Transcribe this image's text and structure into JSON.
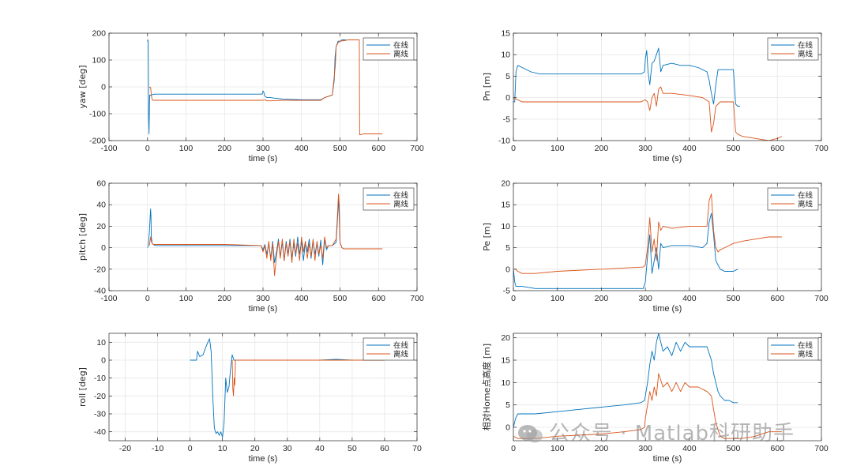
{
  "colors": {
    "online": "#0072BD",
    "offline": "#D95319",
    "grid": "#e6e6e6",
    "axis": "#262626"
  },
  "legend": {
    "online_label": "在线",
    "offline_label": "离线"
  },
  "watermark": {
    "text": "公众号 · Matlab科研助手"
  },
  "chart_data": [
    {
      "id": "yaw",
      "type": "line",
      "position": "top-left",
      "title": "",
      "xlabel": "time (s)",
      "ylabel": "yaw [deg]",
      "xlim": [
        -100,
        700
      ],
      "ylim": [
        -200,
        200
      ],
      "xticks": [
        -100,
        0,
        100,
        200,
        300,
        400,
        500,
        600,
        700
      ],
      "yticks": [
        -200,
        -100,
        0,
        100,
        200
      ],
      "series": [
        {
          "name": "在线",
          "color": "online",
          "x": [
            0,
            1,
            2,
            2.5,
            3,
            4,
            5,
            6,
            8,
            10,
            15,
            20,
            30,
            50,
            100,
            200,
            290,
            298,
            300,
            302,
            305,
            310,
            320,
            330,
            350,
            400,
            450,
            460,
            470,
            480,
            485,
            487,
            490,
            495,
            500,
            505,
            510,
            515
          ],
          "y": [
            170,
            175,
            170,
            0,
            -120,
            -175,
            -60,
            -30,
            -32,
            -30,
            -28,
            -27,
            -27,
            -27,
            -27,
            -27,
            -27,
            -27,
            -15,
            -20,
            -35,
            -40,
            -40,
            -42,
            -45,
            -48,
            -48,
            -40,
            -35,
            -30,
            25,
            110,
            150,
            170,
            170,
            175,
            175,
            175
          ]
        },
        {
          "name": "离线",
          "color": "offline",
          "x": [
            5,
            6,
            8,
            10,
            12,
            15,
            20,
            30,
            50,
            100,
            200,
            290,
            300,
            305,
            310,
            320,
            350,
            400,
            450,
            460,
            470,
            480,
            488,
            490,
            495,
            500,
            510,
            520,
            550,
            551,
            555,
            560,
            600,
            610
          ],
          "y": [
            0,
            -2,
            -2,
            -30,
            -48,
            -50,
            -50,
            -50,
            -50,
            -50,
            -50,
            -50,
            -50,
            -48,
            -52,
            -52,
            -50,
            -50,
            -50,
            -40,
            -35,
            -30,
            80,
            150,
            165,
            170,
            172,
            175,
            175,
            -178,
            -178,
            -175,
            -175,
            -175
          ]
        }
      ]
    },
    {
      "id": "pn",
      "type": "line",
      "position": "top-right",
      "title": "",
      "xlabel": "time (s)",
      "ylabel": "Pn [m]",
      "xlim": [
        0,
        700
      ],
      "ylim": [
        -10,
        15
      ],
      "xticks": [
        0,
        100,
        200,
        300,
        400,
        500,
        600,
        700
      ],
      "yticks": [
        -10,
        -5,
        0,
        5,
        10,
        15
      ],
      "series": [
        {
          "name": "在线",
          "color": "online",
          "x": [
            0,
            3,
            6,
            10,
            20,
            40,
            60,
            100,
            200,
            290,
            298,
            300,
            303,
            306,
            310,
            315,
            320,
            325,
            330,
            335,
            340,
            360,
            380,
            400,
            420,
            440,
            445,
            450,
            455,
            460,
            465,
            470,
            480,
            500,
            505,
            510,
            515
          ],
          "y": [
            -1,
            -1,
            6,
            7.5,
            7,
            6,
            5.5,
            5.5,
            5.5,
            5.5,
            6,
            9,
            11,
            6,
            3,
            8,
            8.5,
            10,
            11.5,
            6,
            7.5,
            8,
            7.5,
            7.5,
            7,
            6,
            4,
            1,
            -1.5,
            3,
            6.5,
            6.5,
            6.5,
            6.5,
            -1.5,
            -2,
            -2
          ]
        },
        {
          "name": "离线",
          "color": "offline",
          "x": [
            0,
            10,
            20,
            50,
            100,
            200,
            290,
            300,
            305,
            310,
            315,
            320,
            325,
            330,
            335,
            340,
            360,
            400,
            430,
            445,
            450,
            455,
            460,
            470,
            480,
            500,
            505,
            510,
            520,
            550,
            580,
            600,
            610
          ],
          "y": [
            0,
            -0.5,
            -1,
            -1,
            -1,
            -1,
            -1,
            -0.5,
            -1,
            -3,
            0,
            1,
            -2,
            2,
            2.5,
            1,
            1,
            0.5,
            0,
            -1,
            -8,
            -6,
            -2,
            -1,
            -1,
            -1,
            -8,
            -8.5,
            -9,
            -9.5,
            -10,
            -9.5,
            -9
          ]
        }
      ]
    },
    {
      "id": "pitch",
      "type": "line",
      "position": "middle-left",
      "title": "",
      "xlabel": "time (s)",
      "ylabel": "pitch [deg]",
      "xlim": [
        -100,
        700
      ],
      "ylim": [
        -40,
        60
      ],
      "xticks": [
        -100,
        0,
        100,
        200,
        300,
        400,
        500,
        600,
        700
      ],
      "yticks": [
        -40,
        -20,
        0,
        20,
        40,
        60
      ],
      "series": [
        {
          "name": "在线",
          "color": "online",
          "x": [
            0,
            2,
            5,
            7,
            8,
            9,
            10,
            12,
            15,
            20,
            40,
            100,
            200,
            295,
            300,
            305,
            310,
            315,
            320,
            325,
            330,
            335,
            340,
            345,
            350,
            355,
            360,
            365,
            370,
            375,
            380,
            385,
            390,
            395,
            400,
            405,
            410,
            415,
            420,
            425,
            430,
            435,
            440,
            445,
            450,
            455,
            460,
            465,
            470,
            480,
            490,
            494,
            496,
            500,
            505,
            510,
            520,
            550,
            600,
            610
          ],
          "y": [
            0,
            2,
            15,
            30,
            36,
            30,
            10,
            4,
            3,
            2,
            2,
            2,
            2,
            2,
            -2,
            3,
            -6,
            4,
            -10,
            6,
            -14,
            -4,
            8,
            -8,
            5,
            -12,
            6,
            -6,
            8,
            -10,
            4,
            -8,
            10,
            -6,
            6,
            -12,
            5,
            -4,
            8,
            -10,
            6,
            -6,
            4,
            -8,
            7,
            -16,
            8,
            -2,
            2,
            2,
            5,
            30,
            48,
            5,
            0,
            -1,
            -1,
            -1,
            -1,
            -1
          ]
        },
        {
          "name": "离线",
          "color": "offline",
          "x": [
            5,
            8,
            10,
            12,
            15,
            20,
            40,
            100,
            200,
            295,
            300,
            305,
            310,
            315,
            320,
            325,
            330,
            335,
            340,
            345,
            350,
            355,
            360,
            365,
            370,
            375,
            380,
            385,
            390,
            395,
            400,
            405,
            410,
            415,
            420,
            425,
            430,
            435,
            440,
            445,
            450,
            455,
            460,
            465,
            470,
            480,
            490,
            494,
            496,
            498,
            500,
            505,
            510,
            520,
            550,
            600,
            610
          ],
          "y": [
            2,
            10,
            6,
            4,
            3,
            3,
            3,
            3,
            3,
            2,
            -4,
            2,
            -10,
            6,
            -12,
            4,
            -26,
            -8,
            6,
            -10,
            8,
            -12,
            4,
            -8,
            6,
            -14,
            8,
            -6,
            4,
            -12,
            10,
            -4,
            6,
            -10,
            4,
            -8,
            8,
            -12,
            6,
            -6,
            2,
            -10,
            10,
            0,
            2,
            2,
            8,
            35,
            50,
            40,
            5,
            0,
            -1,
            -1,
            -1,
            -1,
            -1
          ]
        }
      ]
    },
    {
      "id": "pe",
      "type": "line",
      "position": "middle-right",
      "title": "",
      "xlabel": "time (s)",
      "ylabel": "Pe [m]",
      "xlim": [
        0,
        700
      ],
      "ylim": [
        -5,
        20
      ],
      "xticks": [
        0,
        100,
        200,
        300,
        400,
        500,
        600,
        700
      ],
      "yticks": [
        -5,
        0,
        5,
        10,
        15,
        20
      ],
      "series": [
        {
          "name": "在线",
          "color": "online",
          "x": [
            0,
            3,
            6,
            10,
            20,
            50,
            100,
            200,
            295,
            300,
            305,
            310,
            315,
            320,
            325,
            330,
            335,
            340,
            360,
            400,
            430,
            440,
            445,
            450,
            455,
            460,
            465,
            470,
            480,
            500,
            510
          ],
          "y": [
            0,
            -3,
            -4,
            -4,
            -4,
            -4.5,
            -4.5,
            -4.5,
            -4.5,
            -3,
            3,
            8,
            -1,
            2,
            5,
            0,
            6,
            5,
            5.5,
            5.5,
            5,
            6,
            11,
            13,
            8,
            2,
            1,
            0,
            -0.5,
            -0.5,
            0
          ]
        },
        {
          "name": "离线",
          "color": "offline",
          "x": [
            0,
            5,
            10,
            20,
            50,
            100,
            200,
            295,
            300,
            305,
            310,
            315,
            320,
            325,
            330,
            335,
            340,
            360,
            400,
            430,
            440,
            445,
            450,
            455,
            460,
            465,
            470,
            480,
            500,
            520,
            550,
            580,
            600,
            610
          ],
          "y": [
            0,
            0,
            -0.5,
            -1,
            -1,
            -0.5,
            0,
            0.5,
            1,
            5,
            12,
            4,
            7,
            2,
            11,
            9,
            10,
            9.5,
            10,
            10,
            10,
            16,
            17.5,
            9,
            5,
            4,
            4.5,
            5,
            6,
            6.5,
            7,
            7.5,
            7.5,
            7.5
          ]
        }
      ]
    },
    {
      "id": "roll",
      "type": "line",
      "position": "bottom-left",
      "title": "",
      "xlabel": "time (s)",
      "ylabel": "roll [deg]",
      "xlim": [
        -25,
        70
      ],
      "ylim": [
        -45,
        15
      ],
      "xticks": [
        -20,
        -10,
        0,
        10,
        20,
        30,
        40,
        50,
        60,
        70
      ],
      "yticks": [
        -40,
        -30,
        -20,
        -10,
        0,
        10
      ],
      "series": [
        {
          "name": "在线",
          "color": "online",
          "x": [
            0,
            1,
            2,
            2.3,
            3,
            4,
            5,
            5.5,
            6,
            6.5,
            7,
            7.5,
            8,
            8.5,
            9,
            9.5,
            10,
            10.5,
            11,
            11.5,
            12,
            12.5,
            13,
            13.5,
            14,
            15,
            20,
            30,
            40,
            45,
            50,
            60
          ],
          "y": [
            0,
            0,
            0,
            5,
            2,
            3,
            8,
            10,
            12,
            5,
            -20,
            -38,
            -41,
            -40,
            -42,
            -40,
            -43,
            -35,
            -10,
            -18,
            -15,
            -5,
            3,
            0,
            0,
            0,
            0,
            0,
            0,
            0.5,
            0,
            0
          ]
        },
        {
          "name": "离线",
          "color": "offline",
          "x": [
            13,
            13.2,
            13.4,
            13.6,
            13.8,
            14,
            15,
            20,
            30,
            40,
            50,
            60
          ],
          "y": [
            0,
            -16,
            -20,
            -10,
            -14,
            0,
            0,
            0,
            0,
            0,
            0,
            0
          ]
        }
      ]
    },
    {
      "id": "home-height",
      "type": "line",
      "position": "bottom-right",
      "title": "",
      "xlabel": "time (s)",
      "ylabel": "相对Home点高度 [m]",
      "xlim": [
        0,
        700
      ],
      "ylim": [
        -3,
        21
      ],
      "xticks": [
        0,
        100,
        200,
        300,
        400,
        500,
        600,
        700
      ],
      "yticks": [
        0,
        5,
        10,
        15,
        20
      ],
      "series": [
        {
          "name": "在线",
          "color": "online",
          "x": [
            0,
            5,
            10,
            20,
            50,
            100,
            150,
            200,
            250,
            290,
            298,
            300,
            305,
            310,
            315,
            320,
            325,
            330,
            340,
            350,
            360,
            370,
            380,
            390,
            400,
            420,
            440,
            450,
            455,
            460,
            465,
            470,
            480,
            490,
            500,
            510
          ],
          "y": [
            0,
            2,
            3,
            3,
            3,
            3.5,
            4,
            4.5,
            5,
            5.5,
            6,
            7,
            10,
            14,
            17,
            15,
            19,
            21,
            17,
            18,
            16,
            19,
            17,
            19,
            18,
            18,
            18,
            15,
            12,
            10,
            8,
            7,
            6,
            6,
            5.5,
            5.5
          ]
        },
        {
          "name": "离线",
          "color": "offline",
          "x": [
            0,
            10,
            50,
            100,
            200,
            250,
            290,
            298,
            300,
            305,
            310,
            315,
            320,
            325,
            330,
            340,
            350,
            360,
            370,
            380,
            390,
            400,
            420,
            440,
            450,
            455,
            460,
            465,
            470,
            480,
            500,
            520,
            550,
            580,
            600,
            610
          ],
          "y": [
            -2,
            -2.5,
            -2.5,
            -2,
            -1.5,
            -1,
            -0.5,
            0,
            2,
            5,
            8,
            6,
            9,
            7,
            12,
            9,
            10,
            8,
            10,
            8,
            10,
            9,
            9,
            8,
            7,
            4,
            1,
            -0.5,
            -2,
            -2.5,
            -2.5,
            -2.5,
            -2,
            -1,
            -1,
            -1
          ]
        }
      ]
    }
  ]
}
